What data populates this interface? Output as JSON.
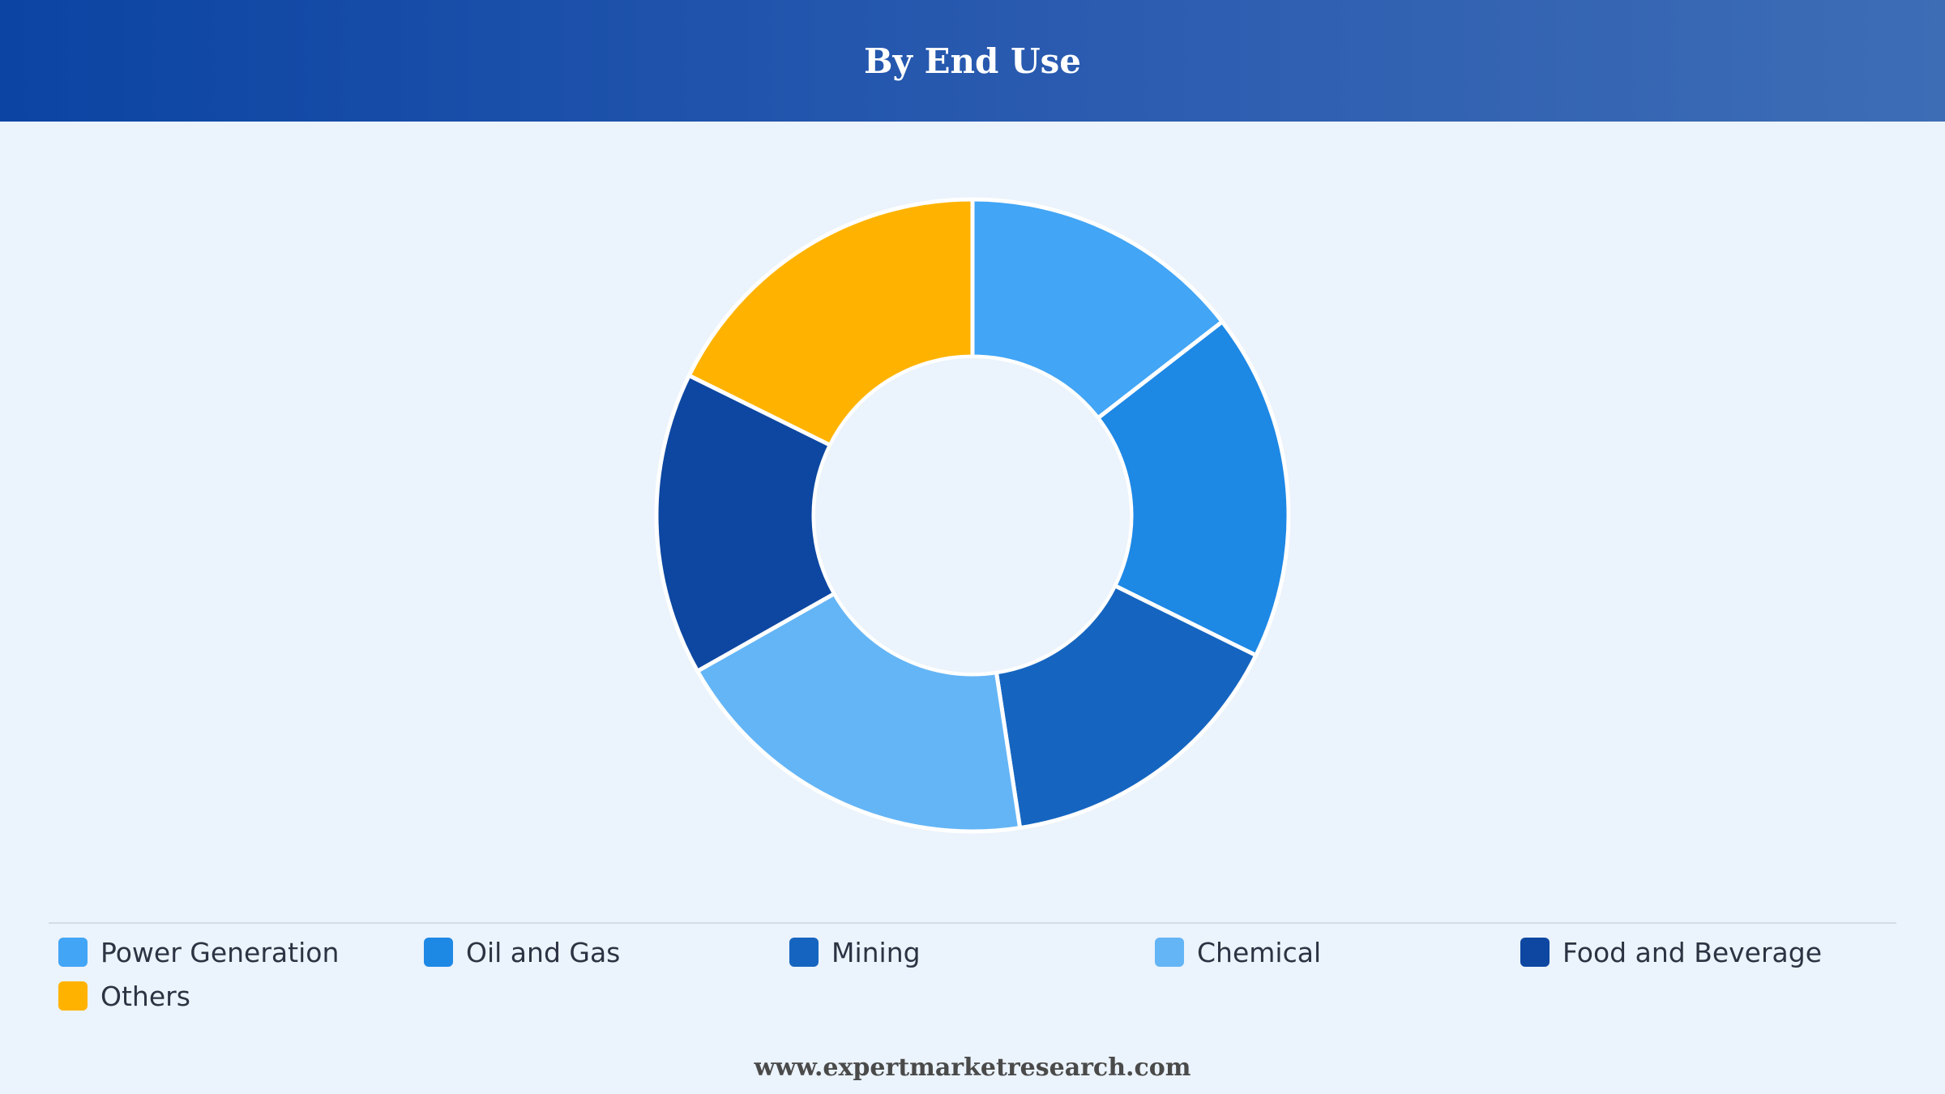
{
  "header": {
    "title": "By End Use"
  },
  "chart_data": {
    "type": "pie",
    "title": "By End Use",
    "donut": true,
    "categories": [
      "Power Generation",
      "Oil and Gas",
      "Mining",
      "Chemical",
      "Food and Beverage",
      "Others"
    ],
    "values": [
      14.5,
      17.8,
      15.3,
      19.2,
      15.5,
      17.7
    ],
    "colors": [
      "#42a5f5",
      "#1e88e5",
      "#1565c0",
      "#64b5f6",
      "#0d47a1",
      "#ffb300"
    ],
    "start_angle_deg": 0,
    "direction": "clockwise",
    "legend_position": "bottom"
  },
  "legend": {
    "items": [
      {
        "label": "Power Generation",
        "color": "#42a5f5"
      },
      {
        "label": "Oil and Gas",
        "color": "#1e88e5"
      },
      {
        "label": "Mining",
        "color": "#1565c0"
      },
      {
        "label": "Chemical",
        "color": "#64b5f6"
      },
      {
        "label": "Food and Beverage",
        "color": "#0d47a1"
      },
      {
        "label": "Others",
        "color": "#ffb300"
      }
    ]
  },
  "footer": {
    "source": "www.expertmarketresearch.com"
  }
}
